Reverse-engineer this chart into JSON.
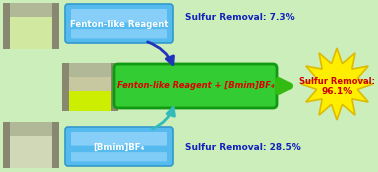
{
  "bg_color": "#cceebb",
  "box_top_label": "Fenton-like Reagent",
  "box_bottom_label": "[Bmim]BF₄",
  "box_center_label": "Fenton-like Reagent + [Bmim]BF₄",
  "text_top": "Sulfur Removal: 7.3%",
  "text_bottom": "Sulfur Removal: 28.5%",
  "text_burst_line1": "Sulfur Removal:",
  "text_burst_line2": "96.1%",
  "box_top_color": "#55bbee",
  "box_bottom_color": "#55bbee",
  "box_center_color": "#33cc33",
  "box_top_edge": "#3399cc",
  "box_bottom_edge": "#3399cc",
  "box_center_edge": "#119911",
  "center_text_color": "#dd0000",
  "side_text_color": "#1122bb",
  "burst_fill": "#ffee00",
  "burst_text_color": "#cc0000",
  "burst_edge": "#ddbb00",
  "arrow_top_color": "#2233bb",
  "arrow_bottom_color": "#33bbbb",
  "arrow_right_color": "#33bb11",
  "flask_bg": "#1a1a1a",
  "flask_liq_top": "#d0e8a0",
  "flask_liq_mid_top": "#c8c8a0",
  "flask_liq_mid_bot": "#ccee00",
  "flask_liq_bot": "#d0d8b8"
}
